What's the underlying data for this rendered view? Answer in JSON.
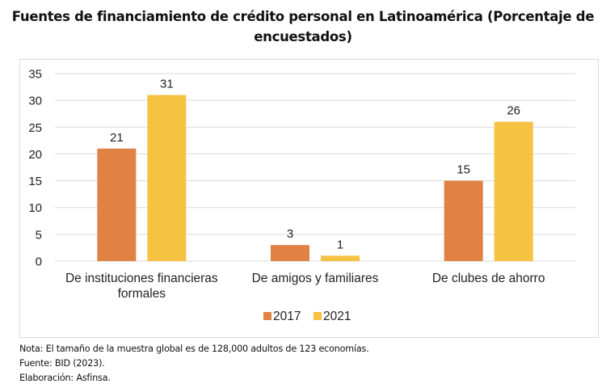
{
  "chart_data": {
    "type": "bar",
    "title": "Fuentes de financiamiento de crédito personal en Latinoamérica (Porcentaje de encuestados)",
    "title_lines": [
      "Fuentes de financiamiento de crédito personal en Latinoamérica (Porcentaje de",
      "encuestados)"
    ],
    "categories": [
      "De instituciones financieras formales",
      "De amigos y familiares",
      "De clubes de ahorro"
    ],
    "category_label_lines": [
      [
        "De instituciones financieras",
        "formales"
      ],
      [
        "De amigos y familiares"
      ],
      [
        "De clubes de ahorro"
      ]
    ],
    "series": [
      {
        "name": "2017",
        "values": [
          21,
          3,
          15
        ],
        "color": "#e08244"
      },
      {
        "name": "2021",
        "values": [
          31,
          1,
          26
        ],
        "color": "#f5c242"
      }
    ],
    "xlabel": "",
    "ylabel": "",
    "ylim": [
      0,
      35
    ],
    "yticks": [
      0,
      5,
      10,
      15,
      20,
      25,
      30,
      35
    ],
    "grid": true,
    "legend_position": "bottom",
    "data_labels": true
  },
  "notes": {
    "nota": "Nota: El tamaño de la muestra global es de 128,000 adultos de 123 economías.",
    "fuente": "Fuente: BID (2023).",
    "elaboracion": "Elaboración: Asfinsa."
  }
}
